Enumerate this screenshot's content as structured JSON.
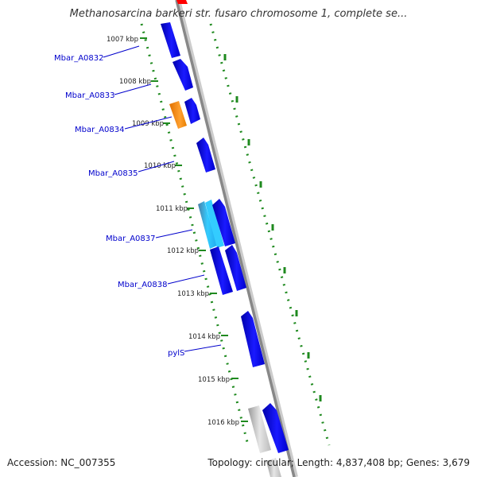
{
  "title": "Methanosarcina barkeri str. fusaro chromosome 1, complete se...",
  "footer": {
    "accession": "Accession: NC_007355",
    "summary": "Topology: circular; Length: 4,837,408 bp; Genes: 3,679"
  },
  "colors": {
    "background": "#ffffff",
    "backbone": "#888888",
    "tick_dots": "#1f8a1f",
    "gene_forward": "#0000ee",
    "gene_highlight": "#ff8800",
    "gene_light": "#33ccff",
    "gene_gray": "#aaaaaa",
    "gene_label": "#0000cc",
    "top_marker": "#ff0000"
  },
  "scale": {
    "unit": "kbp",
    "ticks": [
      "1007 kbp",
      "1008 kbp",
      "1009 kbp",
      "1010 kbp",
      "1011 kbp",
      "1012 kbp",
      "1013 kbp",
      "1014 kbp",
      "1015 kbp",
      "1016 kbp"
    ]
  },
  "gene_labels": [
    "Mbar_A0832",
    "Mbar_A0833",
    "Mbar_A0834",
    "Mbar_A0835",
    "Mbar_A0837",
    "Mbar_A0838",
    "pylS"
  ]
}
